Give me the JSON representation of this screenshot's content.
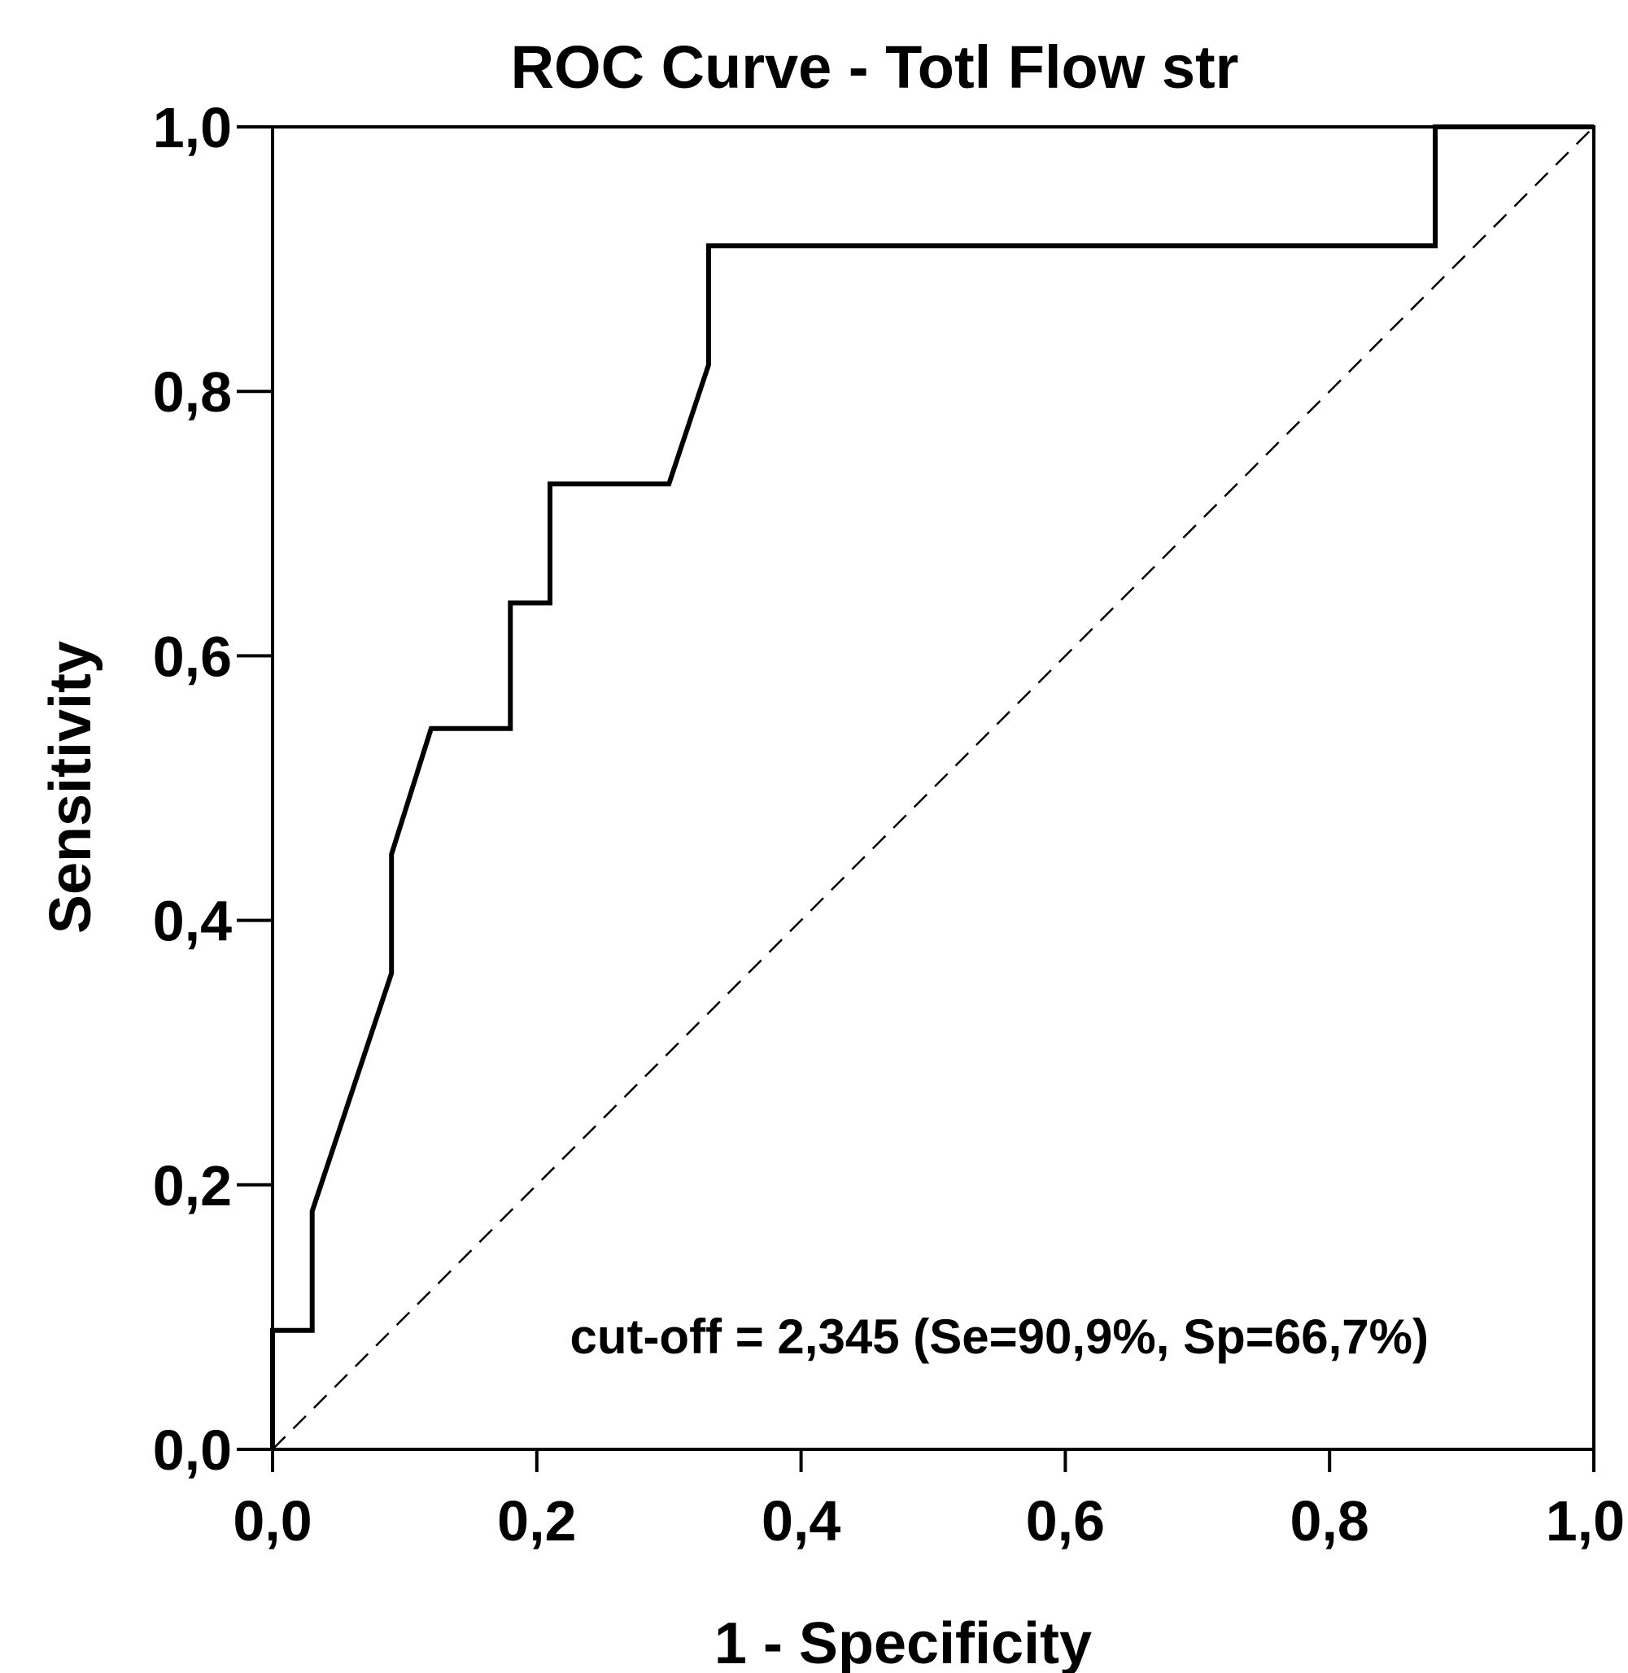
{
  "chart_data": {
    "type": "line",
    "title": "ROC Curve - Totl Flow str",
    "xlabel": "1 - Specificity",
    "ylabel": "Sensitivity",
    "xlim": [
      0,
      1
    ],
    "ylim": [
      0,
      1
    ],
    "x_ticks": [
      "0,0",
      "0,2",
      "0,4",
      "0,6",
      "0,8",
      "1,0"
    ],
    "y_ticks": [
      "0,0",
      "0,2",
      "0,4",
      "0,6",
      "0,8",
      "1,0"
    ],
    "grid": false,
    "series": [
      {
        "x": [
          0,
          0,
          0.03,
          0.03,
          0.09,
          0.09,
          0.12,
          0.18,
          0.18,
          0.21,
          0.21,
          0.3,
          0.33,
          0.33,
          0.88,
          0.88,
          1.0
        ],
        "y": [
          0,
          0.09,
          0.09,
          0.18,
          0.36,
          0.45,
          0.545,
          0.545,
          0.64,
          0.64,
          0.73,
          0.73,
          0.82,
          0.91,
          0.91,
          1.0,
          1.0
        ],
        "color": "#000000"
      },
      {
        "x": [
          0,
          1
        ],
        "y": [
          0,
          1
        ],
        "color": "#000000",
        "style": "dashed"
      }
    ],
    "annotation": {
      "text": "cut-off = 2,345 (Se=90,9%, Sp=66,7%)",
      "x": 0.55,
      "y": 0.085
    }
  }
}
